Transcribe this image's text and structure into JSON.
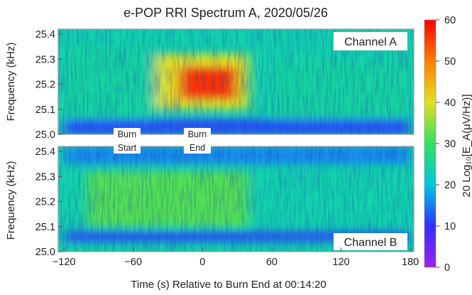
{
  "title": "e-POP RRI Spectrum A, 2020/05/26",
  "chart_data": [
    {
      "type": "heatmap",
      "panel_label": "Channel A",
      "ylabel": "Frequency (kHz)",
      "xlim": [
        -125,
        183
      ],
      "ylim": [
        25.0,
        25.42
      ],
      "y_ticks": [
        "25.4",
        "25.3",
        "25.2",
        "25.1",
        "25.0"
      ],
      "intensity_summary": [
        {
          "x_range": [
            -120,
            -40
          ],
          "y_range": [
            25.05,
            25.35
          ],
          "level_db": 25
        },
        {
          "x_range": [
            -40,
            40
          ],
          "y_range": [
            25.1,
            25.32
          ],
          "level_db": 40
        },
        {
          "x_range": [
            -20,
            30
          ],
          "y_range": [
            25.14,
            25.27
          ],
          "level_db": 56
        },
        {
          "x_range": [
            60,
            180
          ],
          "y_range": [
            25.05,
            25.3
          ],
          "level_db": 25
        },
        {
          "x_range": [
            -120,
            180
          ],
          "y_range": [
            25.0,
            25.06
          ],
          "level_db": 12
        }
      ]
    },
    {
      "type": "heatmap",
      "panel_label": "Channel B",
      "ylabel": "Frequency (kHz)",
      "xlim": [
        -125,
        183
      ],
      "ylim": [
        25.0,
        25.42
      ],
      "x_ticks": [
        "−120",
        "−60",
        "0",
        "60",
        "120",
        "180"
      ],
      "xlabel": "Time (s) Relative to Burn End at 00:14:20",
      "y_ticks": [
        "25.4",
        "25.3",
        "25.2",
        "25.1",
        "25.0"
      ],
      "intensity_summary": [
        {
          "x_range": [
            -100,
            40
          ],
          "y_range": [
            25.1,
            25.32
          ],
          "level_db": 32
        },
        {
          "x_range": [
            -120,
            180
          ],
          "y_range": [
            25.04,
            25.08
          ],
          "level_db": 12
        },
        {
          "x_range": [
            -120,
            180
          ],
          "y_range": [
            25.35,
            25.42
          ],
          "level_db": 16
        }
      ]
    }
  ],
  "colorbar": {
    "label": "20 Log₁₀[E_A(μV/Hz)]",
    "min": 0,
    "max": 60,
    "ticks": [
      "60",
      "50",
      "40",
      "30",
      "20",
      "10",
      "0"
    ],
    "colors": [
      "#a020f0",
      "#3030ff",
      "#00c8e0",
      "#30e060",
      "#e0e020",
      "#ff8000",
      "#ff0000"
    ]
  },
  "annotations": {
    "burn_start": {
      "x": -12,
      "line1": "Burn",
      "line2": "Start",
      "color": "#2e8b2e"
    },
    "burn_end": {
      "x": 0,
      "line1": "Burn",
      "line2": "End",
      "color": "#cc1111"
    }
  }
}
